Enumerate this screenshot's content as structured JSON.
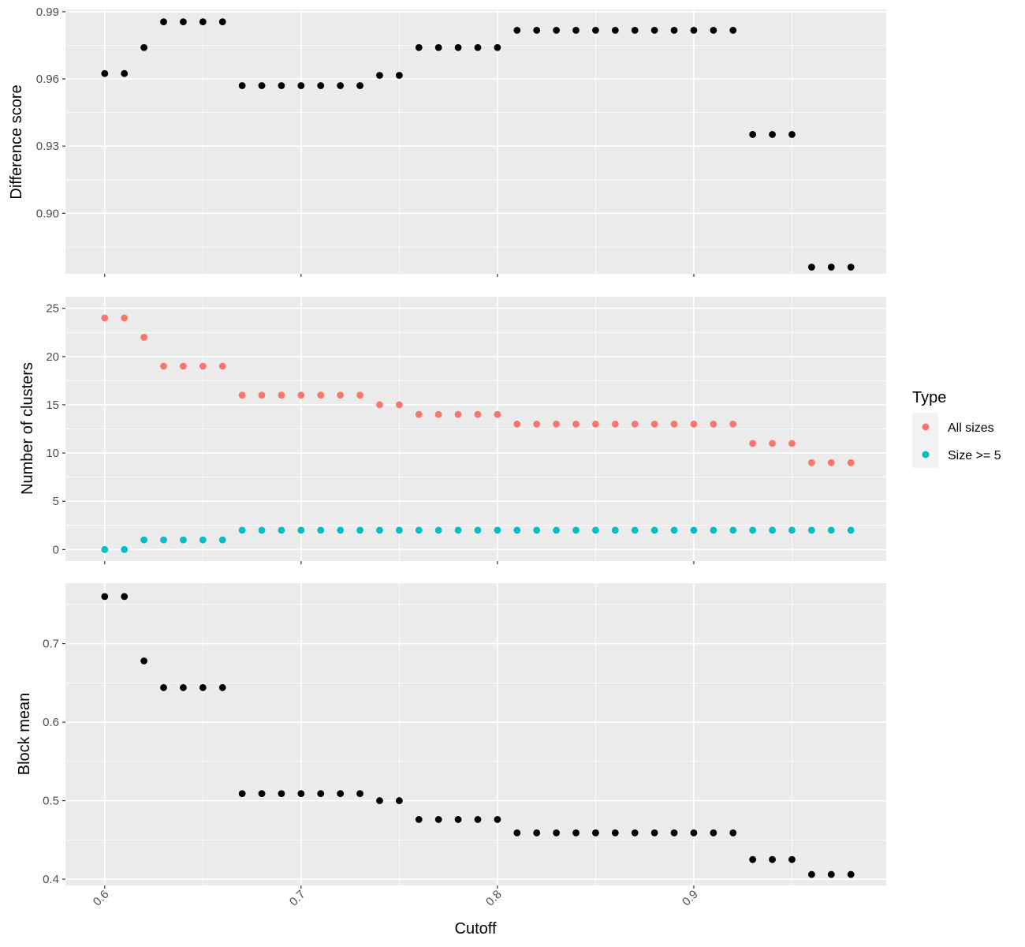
{
  "chart_data": {
    "type": "scatter",
    "x_axis": {
      "title": "Cutoff",
      "range": [
        0.58,
        0.998
      ],
      "ticks": [
        0.6,
        0.7,
        0.8,
        0.9
      ],
      "tick_labels": [
        "0.6",
        "0.7",
        "0.8",
        "0.9"
      ]
    },
    "x": [
      0.6,
      0.61,
      0.62,
      0.63,
      0.64,
      0.65,
      0.66,
      0.67,
      0.68,
      0.69,
      0.7,
      0.71,
      0.72,
      0.73,
      0.74,
      0.75,
      0.76,
      0.77,
      0.78,
      0.79,
      0.8,
      0.81,
      0.82,
      0.83,
      0.84,
      0.85,
      0.86,
      0.87,
      0.88,
      0.89,
      0.9,
      0.91,
      0.92,
      0.93,
      0.94,
      0.95,
      0.96,
      0.97,
      0.98
    ],
    "panels": [
      {
        "ylabel": "Difference score",
        "ylim": [
          0.873,
          0.991
        ],
        "ticks": [
          0.9,
          0.93,
          0.96,
          0.99
        ],
        "tick_labels": [
          "0.90",
          "0.93",
          "0.96",
          "0.99"
        ],
        "series": [
          {
            "color": "#000000",
            "values": [
              0.9624,
              0.9624,
              0.974,
              0.9855,
              0.9855,
              0.9855,
              0.9855,
              0.957,
              0.957,
              0.957,
              0.957,
              0.957,
              0.957,
              0.957,
              0.9616,
              0.9616,
              0.974,
              0.974,
              0.974,
              0.974,
              0.974,
              0.9817,
              0.9817,
              0.9817,
              0.9817,
              0.9817,
              0.9817,
              0.9817,
              0.9817,
              0.9817,
              0.9817,
              0.9817,
              0.9817,
              0.9352,
              0.9352,
              0.9352,
              0.876,
              0.876,
              0.876
            ]
          }
        ]
      },
      {
        "ylabel": "Number of clusters",
        "ylim": [
          -1.2,
          26.2
        ],
        "ticks": [
          0,
          5,
          10,
          15,
          20,
          25
        ],
        "tick_labels": [
          "0",
          "5",
          "10",
          "15",
          "20",
          "25"
        ],
        "series": [
          {
            "name": "All sizes",
            "color": "#F8766D",
            "values": [
              24,
              24,
              22,
              19,
              19,
              19,
              19,
              16,
              16,
              16,
              16,
              16,
              16,
              16,
              15,
              15,
              14,
              14,
              14,
              14,
              14,
              13,
              13,
              13,
              13,
              13,
              13,
              13,
              13,
              13,
              13,
              13,
              13,
              11,
              11,
              11,
              9,
              9,
              9
            ]
          },
          {
            "name": "Size >= 5",
            "color": "#00BFC4",
            "values": [
              0,
              0,
              1,
              1,
              1,
              1,
              1,
              2,
              2,
              2,
              2,
              2,
              2,
              2,
              2,
              2,
              2,
              2,
              2,
              2,
              2,
              2,
              2,
              2,
              2,
              2,
              2,
              2,
              2,
              2,
              2,
              2,
              2,
              2,
              2,
              2,
              2,
              2,
              2
            ]
          }
        ]
      },
      {
        "ylabel": "Block mean",
        "ylim": [
          0.392,
          0.777
        ],
        "ticks": [
          0.4,
          0.5,
          0.6,
          0.7
        ],
        "tick_labels": [
          "0.4",
          "0.5",
          "0.6",
          "0.7"
        ],
        "series": [
          {
            "color": "#000000",
            "values": [
              0.76,
              0.76,
              0.678,
              0.644,
              0.644,
              0.644,
              0.644,
              0.509,
              0.509,
              0.509,
              0.509,
              0.509,
              0.509,
              0.509,
              0.5,
              0.5,
              0.476,
              0.476,
              0.476,
              0.476,
              0.476,
              0.459,
              0.459,
              0.459,
              0.459,
              0.459,
              0.459,
              0.459,
              0.459,
              0.459,
              0.459,
              0.459,
              0.459,
              0.425,
              0.425,
              0.425,
              0.406,
              0.406,
              0.406
            ]
          }
        ]
      }
    ],
    "legend": {
      "title": "Type",
      "placement": "right",
      "items": [
        {
          "label": "All sizes",
          "color": "#F8766D"
        },
        {
          "label": "Size >= 5",
          "color": "#00BFC4"
        }
      ]
    },
    "grid": true,
    "background": "#EBEBEB"
  }
}
